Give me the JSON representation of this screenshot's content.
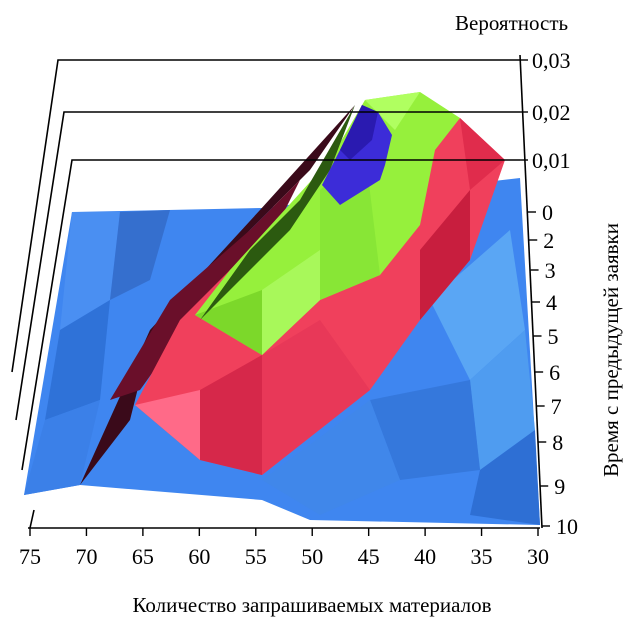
{
  "chart_data": {
    "type": "3d-surface",
    "title": "",
    "xlabel": "Количество запрашиваемых материалов",
    "ylabel": "Время с предыдущей заявки",
    "zlabel": "Вероятность",
    "x_ticks": [
      "75",
      "70",
      "65",
      "60",
      "55",
      "50",
      "45",
      "40",
      "35",
      "30"
    ],
    "y_ticks": [
      "0",
      "2",
      "3",
      "4",
      "5",
      "6",
      "7",
      "8",
      "9",
      "10"
    ],
    "z_ticks": [
      "0,03",
      "0,02",
      "0,01"
    ],
    "x_range": [
      75,
      30
    ],
    "y_range": [
      0,
      10
    ],
    "z_range": [
      0,
      0.03
    ],
    "color_bands": [
      {
        "range": [
          0,
          0.005
        ],
        "color": "#3f86f0"
      },
      {
        "range": [
          0.005,
          0.015
        ],
        "color": "#f0405c"
      },
      {
        "range": [
          0.015,
          0.025
        ],
        "color": "#96f03c"
      },
      {
        "range": [
          0.025,
          0.03
        ],
        "color": "#3c2cd8"
      }
    ],
    "peak": {
      "x": 45,
      "y": 1,
      "z": 0.028
    }
  }
}
